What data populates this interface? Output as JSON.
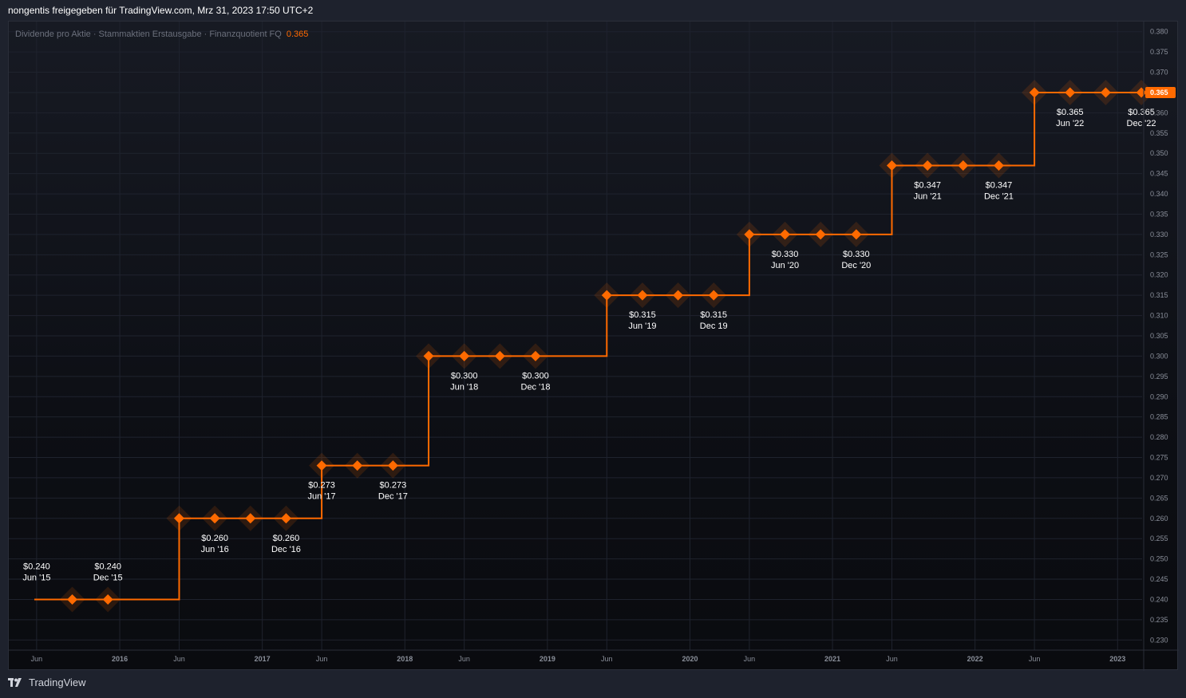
{
  "header": {
    "share_text": "nongentis freigegeben für TradingView.com, Mrz 31, 2023 17:50 UTC+2"
  },
  "footer": {
    "brand": "TradingView"
  },
  "colors": {
    "series": "#ff6a00",
    "grid": "#1f232e",
    "background": "#0f1118",
    "text": "#ffffff",
    "axis_text": "#8a8f9a"
  },
  "chart_data": {
    "type": "line",
    "title": "Dividende pro Aktie · Stammaktien Erstausgabe · Finanzquotient FQ",
    "current_value": "0.365",
    "last_value_badge": "0.365",
    "ylim": [
      0.2275,
      0.3825
    ],
    "y_ticks": [
      "0.380",
      "0.375",
      "0.370",
      "0.365",
      "0.360",
      "0.355",
      "0.350",
      "0.345",
      "0.340",
      "0.335",
      "0.330",
      "0.325",
      "0.320",
      "0.315",
      "0.310",
      "0.305",
      "0.300",
      "0.295",
      "0.290",
      "0.285",
      "0.280",
      "0.275",
      "0.270",
      "0.265",
      "0.260",
      "0.255",
      "0.250",
      "0.245",
      "0.240",
      "0.235",
      "0.230"
    ],
    "x_ticks": [
      "Jun",
      "2016",
      "Jun",
      "2017",
      "Jun",
      "2018",
      "Jun",
      "2019",
      "Jun",
      "2020",
      "Jun",
      "2021",
      "Jun",
      "2022",
      "Jun",
      "2023"
    ],
    "grid": true,
    "line_style": "step",
    "x_start": "2015-05",
    "x_end": "2023-06",
    "series": [
      {
        "points": [
          {
            "x": "2015-09",
            "y": 0.24
          },
          {
            "x": "2015-12",
            "y": 0.24
          },
          {
            "x": "2016-06",
            "y": 0.26
          },
          {
            "x": "2016-09",
            "y": 0.26
          },
          {
            "x": "2016-12",
            "y": 0.26
          },
          {
            "x": "2017-03",
            "y": 0.26
          },
          {
            "x": "2017-06",
            "y": 0.273
          },
          {
            "x": "2017-09",
            "y": 0.273
          },
          {
            "x": "2017-12",
            "y": 0.273
          },
          {
            "x": "2018-03",
            "y": 0.3
          },
          {
            "x": "2018-06",
            "y": 0.3
          },
          {
            "x": "2018-09",
            "y": 0.3
          },
          {
            "x": "2018-12",
            "y": 0.3
          },
          {
            "x": "2019-06",
            "y": 0.315
          },
          {
            "x": "2019-09",
            "y": 0.315
          },
          {
            "x": "2019-12",
            "y": 0.315
          },
          {
            "x": "2020-03",
            "y": 0.315
          },
          {
            "x": "2020-06",
            "y": 0.33
          },
          {
            "x": "2020-09",
            "y": 0.33
          },
          {
            "x": "2020-12",
            "y": 0.33
          },
          {
            "x": "2021-03",
            "y": 0.33
          },
          {
            "x": "2021-06",
            "y": 0.347
          },
          {
            "x": "2021-09",
            "y": 0.347
          },
          {
            "x": "2021-12",
            "y": 0.347
          },
          {
            "x": "2022-03",
            "y": 0.347
          },
          {
            "x": "2022-06",
            "y": 0.365
          },
          {
            "x": "2022-09",
            "y": 0.365
          },
          {
            "x": "2022-12",
            "y": 0.365
          },
          {
            "x": "2023-03",
            "y": 0.365
          }
        ]
      }
    ],
    "annotations": [
      {
        "x": "2015-06",
        "value": "$0.240",
        "date": "Jun '15"
      },
      {
        "x": "2015-12",
        "value": "$0.240",
        "date": "Dec '15"
      },
      {
        "x": "2016-09",
        "value": "$0.260",
        "date": "Jun '16"
      },
      {
        "x": "2017-03",
        "value": "$0.260",
        "date": "Dec '16"
      },
      {
        "x": "2017-06",
        "value": "$0.273",
        "date": "Jun '17"
      },
      {
        "x": "2017-12",
        "value": "$0.273",
        "date": "Dec '17"
      },
      {
        "x": "2018-06",
        "value": "$0.300",
        "date": "Jun '18"
      },
      {
        "x": "2018-12",
        "value": "$0.300",
        "date": "Dec '18"
      },
      {
        "x": "2019-09",
        "value": "$0.315",
        "date": "Jun '19"
      },
      {
        "x": "2020-03",
        "value": "$0.315",
        "date": "Dec 19"
      },
      {
        "x": "2020-09",
        "value": "$0.330",
        "date": "Jun '20"
      },
      {
        "x": "2021-03",
        "value": "$0.330",
        "date": "Dec '20"
      },
      {
        "x": "2021-09",
        "value": "$0.347",
        "date": "Jun '21"
      },
      {
        "x": "2022-03",
        "value": "$0.347",
        "date": "Dec '21"
      },
      {
        "x": "2022-09",
        "value": "$0.365",
        "date": "Jun '22"
      },
      {
        "x": "2023-03",
        "value": "$0.365",
        "date": "Dec '22"
      }
    ]
  }
}
